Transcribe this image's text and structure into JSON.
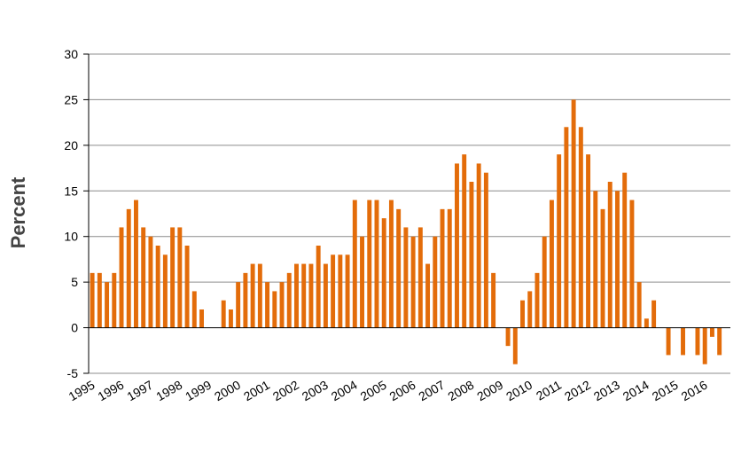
{
  "chart_data": {
    "type": "bar",
    "title": "",
    "xlabel": "",
    "ylabel": "Percent",
    "ylim": [
      -5,
      30
    ],
    "yticks": [
      -5,
      0,
      5,
      10,
      15,
      20,
      25,
      30
    ],
    "grid": true,
    "legend": "none",
    "bar_color": "#E36C0A",
    "grid_color": "#8C8C8C",
    "x": [
      "1995Q1",
      "1995Q2",
      "1995Q3",
      "1995Q4",
      "1996Q1",
      "1996Q2",
      "1996Q3",
      "1996Q4",
      "1997Q1",
      "1997Q2",
      "1997Q3",
      "1997Q4",
      "1998Q1",
      "1998Q2",
      "1998Q3",
      "1998Q4",
      "1999Q1",
      "1999Q2",
      "1999Q3",
      "1999Q4",
      "2000Q1",
      "2000Q2",
      "2000Q3",
      "2000Q4",
      "2001Q1",
      "2001Q2",
      "2001Q3",
      "2001Q4",
      "2002Q1",
      "2002Q2",
      "2002Q3",
      "2002Q4",
      "2003Q1",
      "2003Q2",
      "2003Q3",
      "2003Q4",
      "2004Q1",
      "2004Q2",
      "2004Q3",
      "2004Q4",
      "2005Q1",
      "2005Q2",
      "2005Q3",
      "2005Q4",
      "2006Q1",
      "2006Q2",
      "2006Q3",
      "2006Q4",
      "2007Q1",
      "2007Q2",
      "2007Q3",
      "2007Q4",
      "2008Q1",
      "2008Q2",
      "2008Q3",
      "2008Q4",
      "2009Q1",
      "2009Q2",
      "2009Q3",
      "2009Q4",
      "2010Q1",
      "2010Q2",
      "2010Q3",
      "2010Q4",
      "2011Q1",
      "2011Q2",
      "2011Q3",
      "2011Q4",
      "2012Q1",
      "2012Q2",
      "2012Q3",
      "2012Q4",
      "2013Q1",
      "2013Q2",
      "2013Q3",
      "2013Q4",
      "2014Q1",
      "2014Q2",
      "2014Q3",
      "2014Q4",
      "2015Q1",
      "2015Q2",
      "2015Q3",
      "2015Q4",
      "2016Q1",
      "2016Q2",
      "2016Q3",
      "2016Q4"
    ],
    "values": [
      6,
      6,
      5,
      6,
      11,
      13,
      14,
      11,
      10,
      9,
      8,
      11,
      11,
      9,
      4,
      2,
      0,
      0,
      3,
      2,
      5,
      6,
      7,
      7,
      5,
      4,
      5,
      6,
      7,
      7,
      7,
      9,
      7,
      8,
      8,
      8,
      14,
      10,
      14,
      14,
      12,
      14,
      13,
      11,
      10,
      11,
      7,
      10,
      13,
      13,
      18,
      19,
      16,
      18,
      17,
      6,
      0,
      -2,
      -4,
      3,
      4,
      6,
      10,
      14,
      19,
      22,
      25,
      22,
      19,
      15,
      13,
      16,
      15,
      17,
      14,
      5,
      1,
      3,
      0,
      -3,
      0,
      -3,
      0,
      -3,
      -4,
      -1,
      -3,
      0
    ],
    "year_labels": [
      "1995",
      "1996",
      "1997",
      "1998",
      "1999",
      "2000",
      "2001",
      "2002",
      "2003",
      "2004",
      "2005",
      "2006",
      "2007",
      "2008",
      "2009",
      "2010",
      "2011",
      "2012",
      "2013",
      "2014",
      "2015",
      "2016"
    ]
  }
}
